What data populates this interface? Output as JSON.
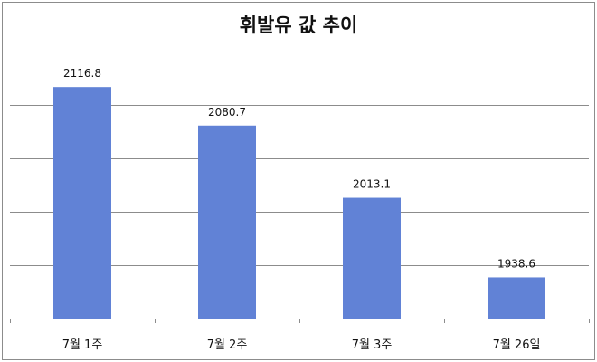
{
  "chart_data": {
    "type": "bar",
    "title": "휘발유 값 추이",
    "categories": [
      "7월 1주",
      "7월 2주",
      "7월 3주",
      "7월 26일"
    ],
    "values": [
      2116.8,
      2080.7,
      2013.1,
      1938.6
    ],
    "data_labels": [
      "2116.8",
      "2080.7",
      "2013.1",
      "1938.6"
    ],
    "xlabel": "",
    "ylabel": "",
    "ylim": [
      1900,
      2150
    ],
    "y_gridline_step": 50,
    "y_tick_labels_shown": false,
    "grid": true,
    "legend": "none",
    "bar_color": "#6182d6",
    "gridline_color": "#8c8c8c"
  }
}
